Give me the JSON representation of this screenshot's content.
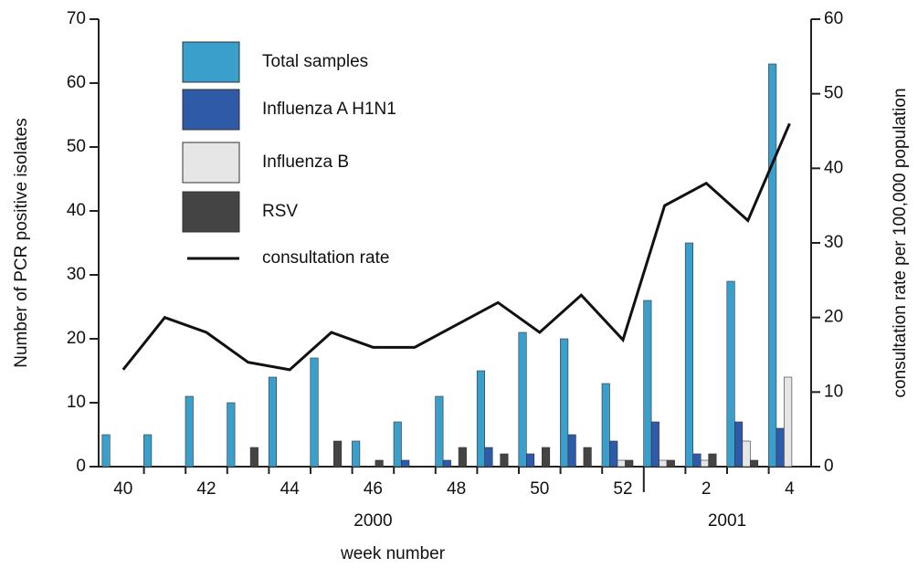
{
  "chart_data": {
    "type": "bar",
    "categories": [
      "40",
      null,
      "42",
      null,
      "44",
      null,
      "46",
      null,
      "48",
      null,
      "50",
      null,
      "52",
      null,
      "2",
      null,
      "4"
    ],
    "x_group_labels": [
      "2000",
      "2001"
    ],
    "xlabel": "week number",
    "ylabel": "Number of PCR positive isolates",
    "y2label": "consultation rate per 100,000 population",
    "series": [
      {
        "name": "Total samples",
        "color": "#3a9fcb",
        "values": [
          5,
          5,
          11,
          10,
          14,
          17,
          4,
          7,
          11,
          15,
          21,
          20,
          13,
          26,
          35,
          29,
          63
        ]
      },
      {
        "name": "Influenza A H1N1",
        "color": "#2f5aa8",
        "values": [
          0,
          0,
          0,
          0,
          0,
          0,
          0,
          1,
          1,
          3,
          2,
          5,
          4,
          7,
          2,
          7,
          6
        ]
      },
      {
        "name": "Influenza B",
        "color": "#e6e6e6",
        "values": [
          0,
          0,
          0,
          0,
          0,
          0,
          0,
          0,
          0,
          0,
          0,
          0,
          1,
          1,
          1,
          4,
          14
        ]
      },
      {
        "name": "RSV",
        "color": "#444444",
        "values": [
          0,
          0,
          0,
          3,
          0,
          4,
          1,
          0,
          3,
          2,
          3,
          3,
          1,
          1,
          2,
          1,
          0
        ]
      },
      {
        "name": "consultation rate",
        "type": "line",
        "axis": "y2",
        "color": "#111111",
        "values": [
          13,
          20,
          18,
          14,
          13,
          18,
          16,
          16,
          19,
          22,
          18,
          23,
          17,
          35,
          38,
          33,
          46
        ]
      }
    ],
    "ylim": [
      0,
      70
    ],
    "yticks": [
      0,
      10,
      20,
      30,
      40,
      50,
      60,
      70
    ],
    "y2lim": [
      0,
      60
    ],
    "y2ticks": [
      0,
      10,
      20,
      30,
      40,
      50,
      60
    ],
    "legend": "upper left"
  }
}
